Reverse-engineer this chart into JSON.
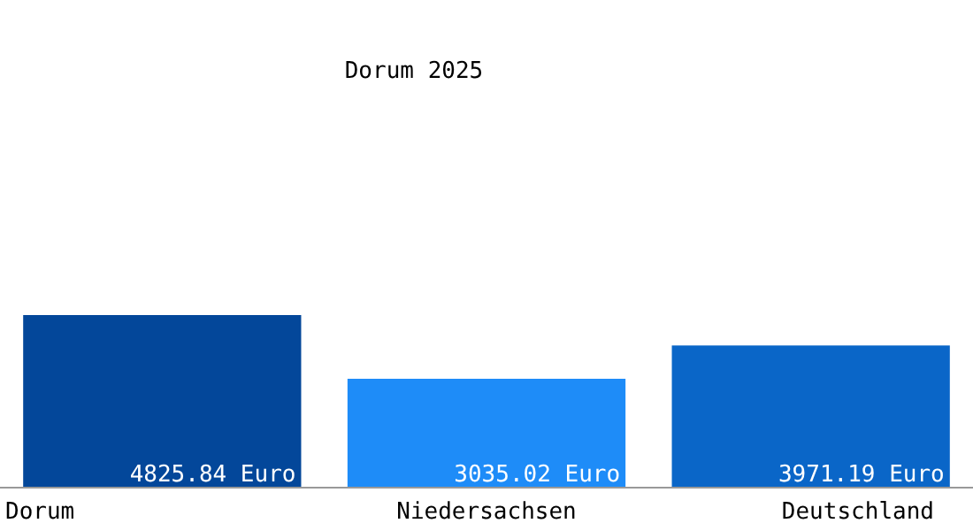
{
  "chart_data": {
    "type": "bar",
    "title": "Dorum 2025",
    "categories": [
      "Dorum",
      "Niedersachsen",
      "Deutschland"
    ],
    "values": [
      4825.84,
      3035.02,
      3971.19
    ],
    "value_labels": [
      "4825.84 Euro",
      "3035.02 Euro",
      "3971.19 Euro"
    ],
    "colors": [
      "#03479a",
      "#1e8cf8",
      "#0a66c8"
    ]
  }
}
